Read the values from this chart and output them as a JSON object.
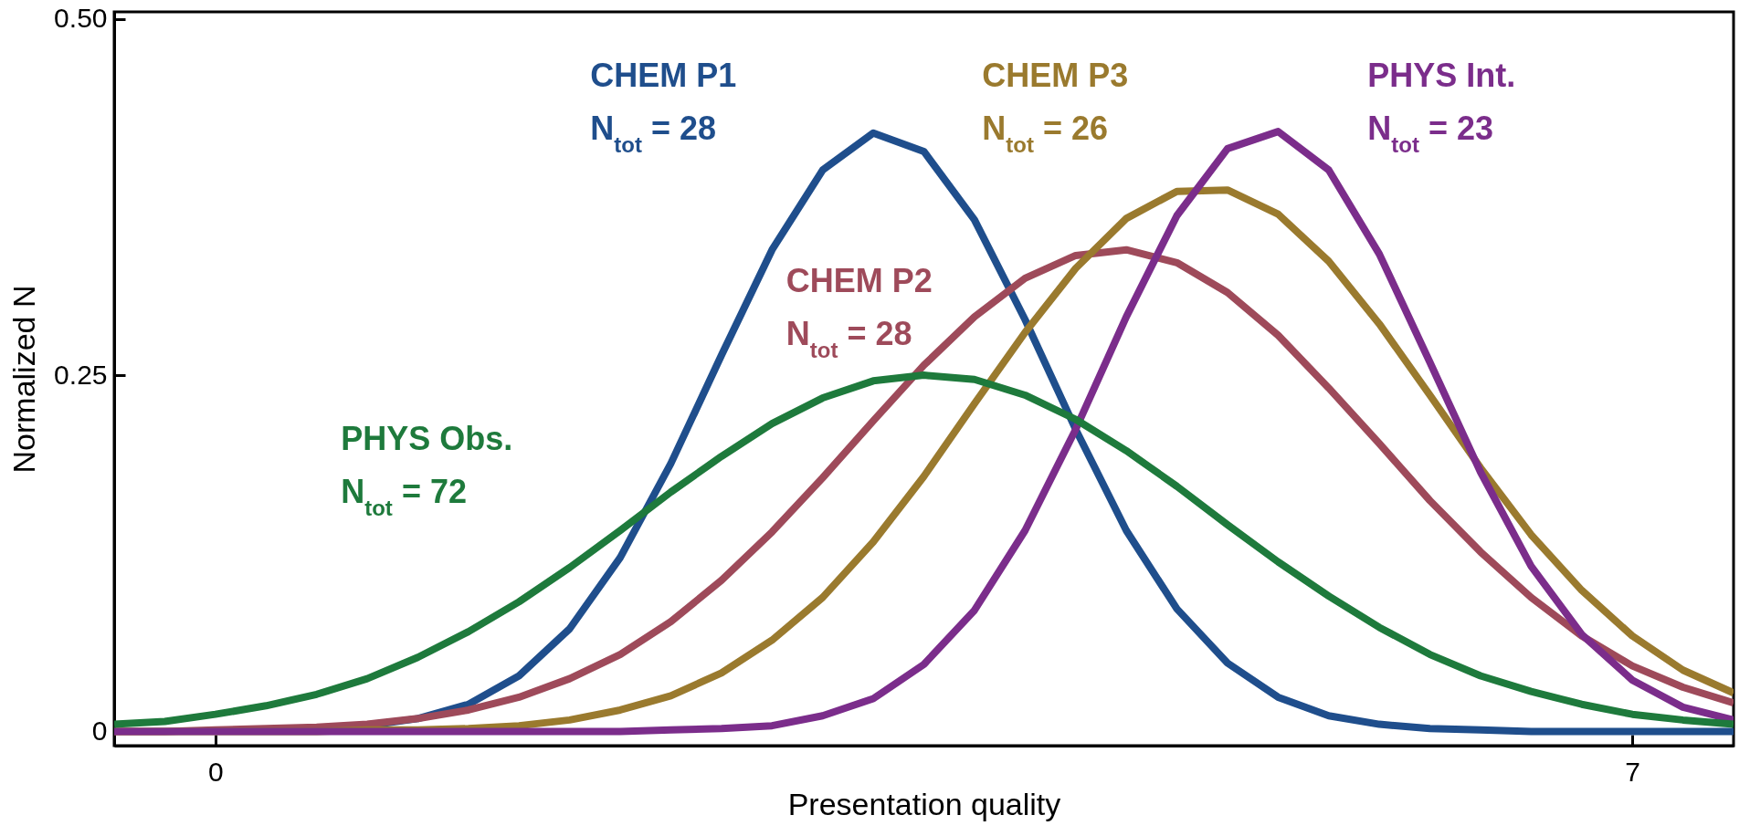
{
  "chart_data": {
    "type": "line",
    "xlabel": "Presentation quality",
    "ylabel": "Normalized N",
    "x": [
      -0.5,
      -0.25,
      0,
      0.25,
      0.5,
      0.75,
      1,
      1.25,
      1.5,
      1.75,
      2,
      2.25,
      2.5,
      2.75,
      3,
      3.25,
      3.5,
      3.75,
      4,
      4.25,
      4.5,
      4.75,
      5,
      5.25,
      5.5,
      5.75,
      6,
      6.25,
      6.5,
      6.75,
      7,
      7.25,
      7.5
    ],
    "series": [
      {
        "name": "CHEM P1",
        "color": "#1f4e8c",
        "values": [
          null,
          null,
          null,
          null,
          0.001,
          0.004,
          0.009,
          0.019,
          0.039,
          0.072,
          0.122,
          0.188,
          0.264,
          0.338,
          0.394,
          0.42,
          0.407,
          0.359,
          0.289,
          0.212,
          0.141,
          0.086,
          0.048,
          0.024,
          0.011,
          0.005,
          0.002,
          0.001,
          0,
          0,
          0,
          0,
          0
        ]
      },
      {
        "name": "CHEM P2",
        "color": "#9e4a5a",
        "values": [
          0,
          0,
          0.001,
          0.002,
          0.003,
          0.005,
          0.009,
          0.015,
          0.024,
          0.037,
          0.054,
          0.077,
          0.106,
          0.14,
          0.178,
          0.218,
          0.257,
          0.291,
          0.318,
          0.334,
          0.338,
          0.329,
          0.308,
          0.278,
          0.241,
          0.202,
          0.162,
          0.126,
          0.094,
          0.067,
          0.046,
          0.031,
          0.02
        ]
      },
      {
        "name": "CHEM P3",
        "color": "#9a7a2e",
        "values": [
          0,
          0,
          0,
          0,
          0,
          0.001,
          0.001,
          0.002,
          0.004,
          0.008,
          0.015,
          0.025,
          0.041,
          0.064,
          0.094,
          0.133,
          0.179,
          0.23,
          0.28,
          0.325,
          0.36,
          0.379,
          0.38,
          0.363,
          0.33,
          0.286,
          0.236,
          0.185,
          0.138,
          0.099,
          0.067,
          0.043,
          0.027
        ]
      },
      {
        "name": "PHYS Int.",
        "color": "#7b2d8b",
        "values": [
          0,
          0,
          0,
          0,
          0,
          0,
          0,
          0,
          0,
          0,
          0,
          0.001,
          0.002,
          0.004,
          0.011,
          0.023,
          0.047,
          0.085,
          0.141,
          0.212,
          0.291,
          0.362,
          0.409,
          0.421,
          0.394,
          0.335,
          0.259,
          0.182,
          0.116,
          0.068,
          0.036,
          0.017,
          0.008
        ]
      },
      {
        "name": "PHYS Obs.",
        "color": "#1e7a3c",
        "values": [
          0.005,
          0.007,
          0.012,
          0.018,
          0.026,
          0.037,
          0.052,
          0.07,
          0.091,
          0.115,
          0.141,
          0.168,
          0.193,
          0.216,
          0.234,
          0.246,
          0.25,
          0.247,
          0.236,
          0.219,
          0.197,
          0.172,
          0.145,
          0.119,
          0.095,
          0.073,
          0.054,
          0.039,
          0.028,
          0.019,
          0.012,
          0.008,
          0.005
        ]
      }
    ],
    "annotations": [
      "N$_{tot}$ = 28",
      "N$_{tot}$ = 28",
      "N$_{tot}$ = 26",
      "N$_{tot}$ = 23",
      "N$_{tot}$ = 72"
    ],
    "xlim": [
      -0.5,
      7.5
    ],
    "ylim": [
      -0.01,
      0.505
    ],
    "xticks": [
      0,
      7
    ],
    "yticks": [
      0,
      0.25,
      {
        "value": 0.5,
        "label": "0.50"
      }
    ],
    "grid": false,
    "legend": false,
    "marker": "none",
    "line_style": "solid"
  }
}
